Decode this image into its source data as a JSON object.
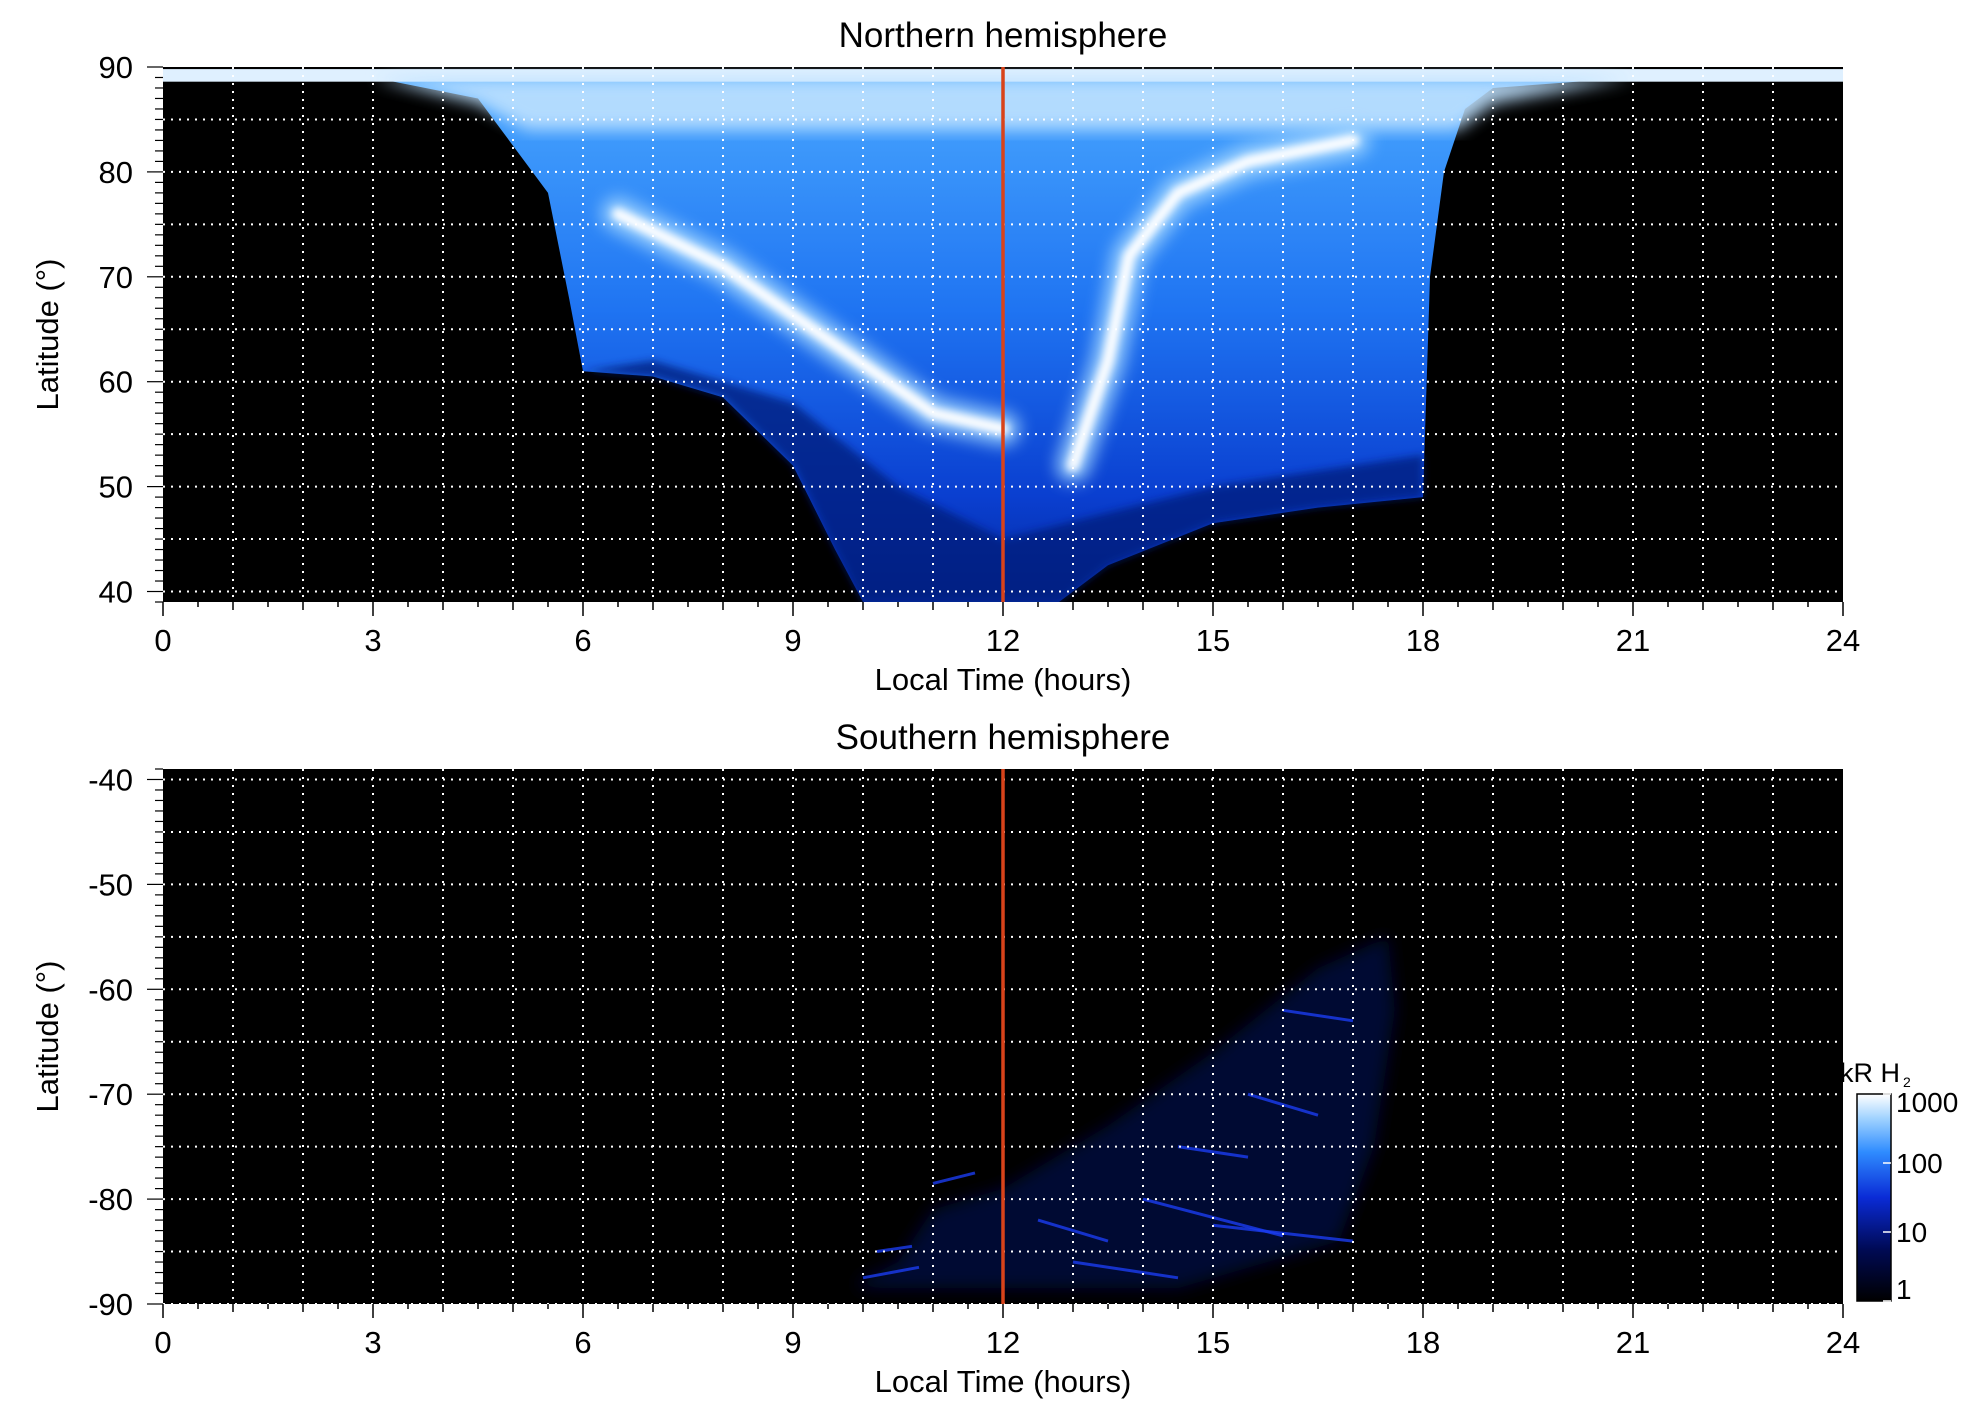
{
  "chart_data": [
    {
      "type": "heatmap",
      "title": "Northern hemisphere",
      "xlabel": "Local Time (hours)",
      "ylabel": "Latitude (°)",
      "xlim": [
        0,
        24
      ],
      "ylim": [
        39,
        90
      ],
      "xticks": [
        "0",
        "3",
        "6",
        "9",
        "12",
        "15",
        "18",
        "21",
        "24"
      ],
      "yticks": [
        "40",
        "50",
        "60",
        "70",
        "80",
        "90"
      ],
      "grid": true,
      "reference_line_x": 12,
      "observed_region_boundary": {
        "left": [
          [
            0.0,
            89.6
          ],
          [
            3.0,
            89.0
          ],
          [
            4.5,
            87.0
          ],
          [
            5.5,
            78.0
          ],
          [
            5.8,
            68.0
          ],
          [
            6.0,
            61.0
          ],
          [
            7.0,
            60.5
          ],
          [
            8.0,
            58.5
          ],
          [
            9.0,
            52.0
          ],
          [
            9.6,
            44.0
          ],
          [
            10.0,
            39.0
          ]
        ],
        "right": [
          [
            24.0,
            89.4
          ],
          [
            21.0,
            89.0
          ],
          [
            19.0,
            88.0
          ],
          [
            18.6,
            86.0
          ],
          [
            18.3,
            80.0
          ],
          [
            18.1,
            70.0
          ],
          [
            18.0,
            49.0
          ],
          [
            16.5,
            48.0
          ],
          [
            15.0,
            46.5
          ],
          [
            13.5,
            42.5
          ],
          [
            12.8,
            39.0
          ]
        ]
      },
      "bright_features": [
        {
          "description_points": [
            [
              6.5,
              76.0
            ],
            [
              8.0,
              71.0
            ],
            [
              9.5,
              64.0
            ],
            [
              11.0,
              57.0
            ],
            [
              12.0,
              55.5
            ]
          ]
        },
        {
          "description_points": [
            [
              13.0,
              52.0
            ],
            [
              13.5,
              62.0
            ],
            [
              13.8,
              72.0
            ],
            [
              14.5,
              78.0
            ],
            [
              15.5,
              81.0
            ],
            [
              17.0,
              83.0
            ]
          ]
        }
      ]
    },
    {
      "type": "heatmap",
      "title": "Southern hemisphere",
      "xlabel": "Local Time (hours)",
      "ylabel": "Latitude (°)",
      "xlim": [
        0,
        24
      ],
      "ylim": [
        -90,
        -39
      ],
      "xticks": [
        "0",
        "3",
        "6",
        "9",
        "12",
        "15",
        "18",
        "21",
        "24"
      ],
      "yticks": [
        "-40",
        "-50",
        "-60",
        "-70",
        "-80",
        "-90"
      ],
      "grid": true,
      "reference_line_x": 12,
      "observed_region_boundary": {
        "points": [
          [
            9.9,
            -88.0
          ],
          [
            10.5,
            -86.0
          ],
          [
            11.0,
            -81.0
          ],
          [
            12.0,
            -79.0
          ],
          [
            13.5,
            -73.0
          ],
          [
            15.0,
            -66.0
          ],
          [
            16.5,
            -58.0
          ],
          [
            17.5,
            -55.0
          ],
          [
            17.6,
            -62.0
          ],
          [
            17.3,
            -75.0
          ],
          [
            16.8,
            -84.0
          ],
          [
            14.5,
            -88.5
          ],
          [
            10.0,
            -88.5
          ]
        ]
      }
    }
  ],
  "colorbar": {
    "label": "kR H",
    "label_subscript": "2",
    "scale": "log",
    "ticks": [
      "1",
      "10",
      "100",
      "1000"
    ],
    "range": [
      1,
      1000
    ]
  },
  "colors": {
    "background": "#000000",
    "grid": "#ffffff",
    "reference_line": "#d8431a",
    "colormap": [
      "#000000",
      "#000a55",
      "#0a2bd6",
      "#2f8cff",
      "#9fd2ff",
      "#ffffff"
    ]
  }
}
